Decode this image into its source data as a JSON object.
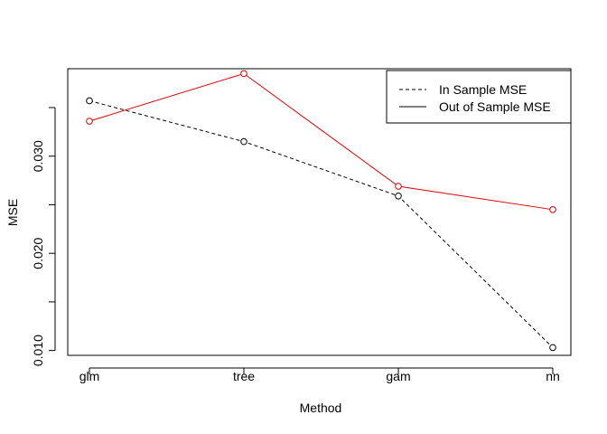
{
  "chart_data": {
    "type": "line",
    "title": "",
    "xlabel": "Method",
    "ylabel": "MSE",
    "categories": [
      "glm",
      "tree",
      "gam",
      "nn"
    ],
    "y_ticks": [
      0.01,
      0.02,
      0.03
    ],
    "y_tick_labels": [
      "0.010",
      "0.020",
      "0.030"
    ],
    "ylim": [
      0.0095,
      0.039
    ],
    "grid": false,
    "legend_position": "top-right",
    "series": [
      {
        "name": "In Sample MSE",
        "values": [
          0.0357,
          0.0315,
          0.0259,
          0.0103
        ],
        "line_color": "#000000",
        "point_color": "#000000",
        "line_style": "dashed",
        "marker": "open-circle"
      },
      {
        "name": "Out of Sample MSE",
        "values": [
          0.0336,
          0.0385,
          0.0269,
          0.0245
        ],
        "line_color": "#dd0000",
        "point_color": "#dd0000",
        "line_style": "solid",
        "marker": "open-circle"
      }
    ],
    "legend_entries": [
      {
        "label": "In Sample MSE",
        "line_style": "dashed",
        "color": "#000000"
      },
      {
        "label": "Out of Sample MSE",
        "line_style": "solid",
        "color": "#000000"
      }
    ]
  }
}
